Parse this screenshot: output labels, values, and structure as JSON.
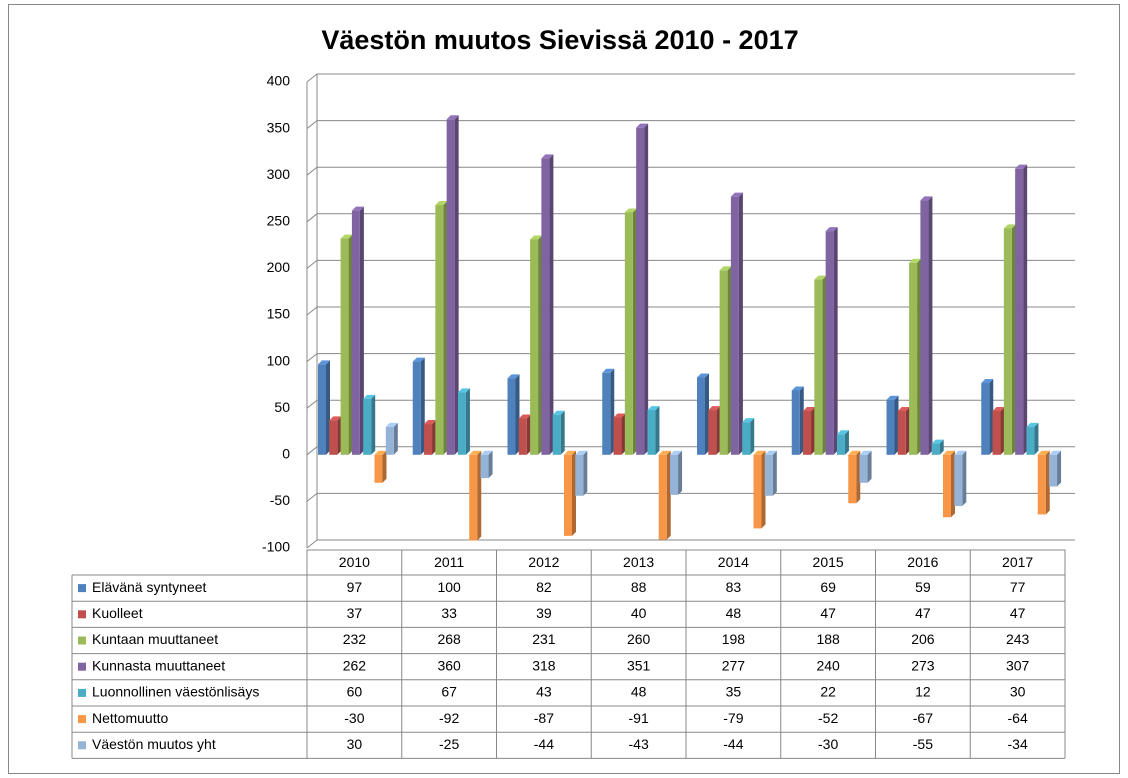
{
  "chart_data": {
    "type": "bar3d",
    "title": "Väestön muutos Sievissä 2010 - 2017",
    "categories": [
      "2010",
      "2011",
      "2012",
      "2013",
      "2014",
      "2015",
      "2016",
      "2017"
    ],
    "series": [
      {
        "name": "Elävänä syntyneet",
        "color": "#4f81bd",
        "values": [
          97,
          100,
          82,
          88,
          83,
          69,
          59,
          77
        ]
      },
      {
        "name": "Kuolleet",
        "color": "#c0504d",
        "values": [
          37,
          33,
          39,
          40,
          48,
          47,
          47,
          47
        ]
      },
      {
        "name": "Kuntaan muuttaneet",
        "color": "#9bbb59",
        "values": [
          232,
          268,
          231,
          260,
          198,
          188,
          206,
          243
        ]
      },
      {
        "name": "Kunnasta muuttaneet",
        "color": "#8064a2",
        "values": [
          262,
          360,
          318,
          351,
          277,
          240,
          273,
          307
        ]
      },
      {
        "name": "Luonnollinen väestönlisäys",
        "color": "#4bacc6",
        "values": [
          60,
          67,
          43,
          48,
          35,
          22,
          12,
          30
        ]
      },
      {
        "name": "Nettomuutto",
        "color": "#f79646",
        "values": [
          -30,
          -92,
          -87,
          -91,
          -79,
          -52,
          -67,
          -64
        ]
      },
      {
        "name": "Väestön muutos yht",
        "color": "#95b3d7",
        "values": [
          30,
          -25,
          -44,
          -43,
          -44,
          -30,
          -55,
          -34
        ]
      }
    ],
    "ylim": [
      -100,
      400
    ],
    "yticks": [
      -100,
      -50,
      0,
      50,
      100,
      150,
      200,
      250,
      300,
      350,
      400
    ],
    "grid": true
  }
}
